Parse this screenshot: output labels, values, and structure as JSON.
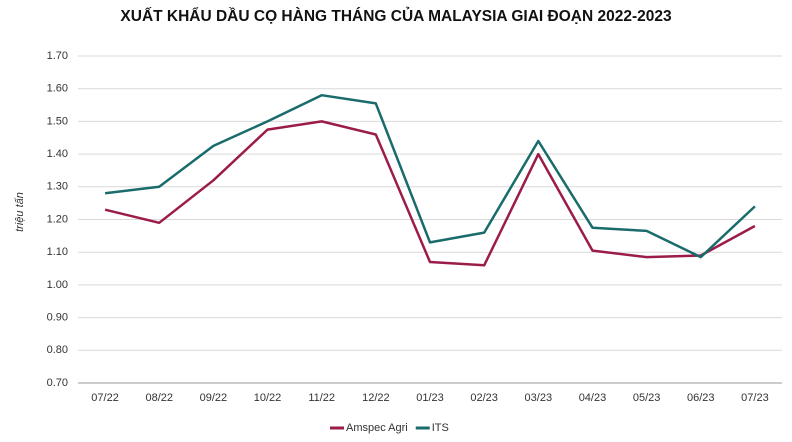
{
  "chart_data": {
    "type": "line",
    "title": "XUẤT KHẨU DẦU CỌ HÀNG THÁNG CỦA MALAYSIA GIAI ĐOẠN 2022-2023",
    "y_label": "triệu tấn",
    "categories": [
      "07/22",
      "08/22",
      "09/22",
      "10/22",
      "11/22",
      "12/22",
      "01/23",
      "02/23",
      "03/23",
      "04/23",
      "05/23",
      "06/23",
      "07/23"
    ],
    "series": [
      {
        "name": "Amspec Agri",
        "color": "#9b1c4a",
        "values": [
          1.23,
          1.19,
          1.32,
          1.475,
          1.5,
          1.46,
          1.07,
          1.06,
          1.4,
          1.105,
          1.085,
          1.09,
          1.18
        ]
      },
      {
        "name": "ITS",
        "color": "#1a6b6b",
        "values": [
          1.28,
          1.3,
          1.425,
          1.5,
          1.58,
          1.555,
          1.13,
          1.16,
          1.44,
          1.175,
          1.165,
          1.085,
          1.24
        ]
      }
    ],
    "ylim": [
      0.7,
      1.7
    ],
    "yticks": [
      {
        "value": 0.7,
        "label": "0.70"
      },
      {
        "value": 0.8,
        "label": "0.80"
      },
      {
        "value": 0.9,
        "label": "0.90"
      },
      {
        "value": 1.0,
        "label": "1.00"
      },
      {
        "value": 1.1,
        "label": "1.10"
      },
      {
        "value": 1.2,
        "label": "1.20"
      },
      {
        "value": 1.3,
        "label": "1.30"
      },
      {
        "value": 1.4,
        "label": "1.40"
      },
      {
        "value": 1.5,
        "label": "1.50"
      },
      {
        "value": 1.6,
        "label": "1.60"
      },
      {
        "value": 1.7,
        "label": "1.70"
      }
    ],
    "grid": true
  }
}
